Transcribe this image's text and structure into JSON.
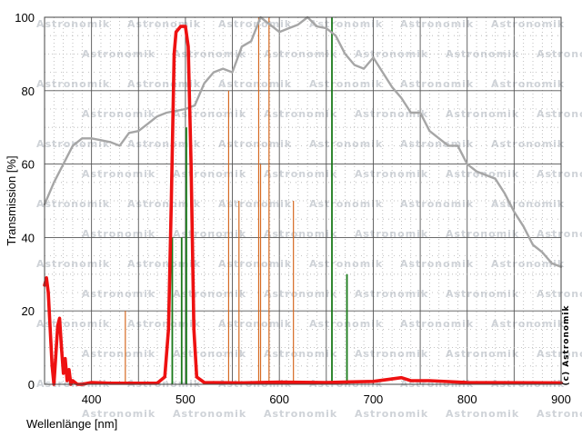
{
  "chart_data": {
    "type": "line",
    "xlabel": "Wellenlänge [nm]",
    "ylabel": "Transmission [%]",
    "xlim": [
      350,
      900
    ],
    "ylim": [
      0,
      100
    ],
    "x_ticks": [
      400,
      500,
      600,
      700,
      800,
      900
    ],
    "y_ticks": [
      0,
      20,
      40,
      60,
      80,
      100
    ],
    "grid": true,
    "legend": "none",
    "watermark": "Astronomik",
    "copyright": "(c) Astronomik",
    "colors": {
      "filter_curve": "#ee1111",
      "sensor_curve": "#a6a6a6",
      "orange_lines": "#d66a22",
      "green_lines": "#1a7a1a",
      "major_grid": "#555555",
      "minor_grid": "#b0b0b0"
    },
    "series": [
      {
        "style": "gray",
        "points": [
          [
            350,
            49
          ],
          [
            360,
            55
          ],
          [
            370,
            60
          ],
          [
            380,
            65
          ],
          [
            390,
            67
          ],
          [
            400,
            67
          ],
          [
            410,
            66.5
          ],
          [
            420,
            66
          ],
          [
            430,
            65
          ],
          [
            440,
            68.5
          ],
          [
            450,
            69
          ],
          [
            460,
            71
          ],
          [
            470,
            73
          ],
          [
            480,
            74
          ],
          [
            490,
            74.5
          ],
          [
            500,
            75
          ],
          [
            510,
            76
          ],
          [
            520,
            82
          ],
          [
            530,
            85
          ],
          [
            540,
            86
          ],
          [
            550,
            85
          ],
          [
            560,
            92
          ],
          [
            570,
            93.5
          ],
          [
            580,
            100
          ],
          [
            590,
            98
          ],
          [
            600,
            96
          ],
          [
            610,
            97
          ],
          [
            620,
            98
          ],
          [
            630,
            100
          ],
          [
            640,
            97.5
          ],
          [
            650,
            97
          ],
          [
            660,
            95
          ],
          [
            670,
            90
          ],
          [
            680,
            87
          ],
          [
            690,
            86
          ],
          [
            700,
            89
          ],
          [
            710,
            85
          ],
          [
            720,
            81
          ],
          [
            730,
            78
          ],
          [
            740,
            74
          ],
          [
            750,
            74
          ],
          [
            760,
            69
          ],
          [
            770,
            67
          ],
          [
            780,
            65
          ],
          [
            790,
            65
          ],
          [
            800,
            60
          ],
          [
            810,
            58
          ],
          [
            820,
            57
          ],
          [
            830,
            56
          ],
          [
            840,
            52
          ],
          [
            850,
            47
          ],
          [
            860,
            43
          ],
          [
            870,
            38
          ],
          [
            880,
            36
          ],
          [
            890,
            33
          ],
          [
            900,
            32
          ]
        ]
      },
      {
        "style": "red",
        "points": [
          [
            350,
            27
          ],
          [
            352,
            29
          ],
          [
            354,
            25
          ],
          [
            356,
            15
          ],
          [
            358,
            5
          ],
          [
            360,
            0
          ],
          [
            362,
            8
          ],
          [
            364,
            16
          ],
          [
            366,
            18
          ],
          [
            368,
            10
          ],
          [
            370,
            3
          ],
          [
            372,
            7
          ],
          [
            374,
            1
          ],
          [
            376,
            4
          ],
          [
            378,
            0
          ],
          [
            380,
            1
          ],
          [
            385,
            0
          ],
          [
            390,
            0
          ],
          [
            400,
            0.5
          ],
          [
            420,
            0.3
          ],
          [
            450,
            0.3
          ],
          [
            470,
            0.3
          ],
          [
            478,
            2
          ],
          [
            482,
            15
          ],
          [
            485,
            50
          ],
          [
            488,
            90
          ],
          [
            490,
            96
          ],
          [
            495,
            97.5
          ],
          [
            500,
            97.5
          ],
          [
            503,
            92
          ],
          [
            506,
            60
          ],
          [
            509,
            15
          ],
          [
            512,
            2
          ],
          [
            520,
            0.5
          ],
          [
            560,
            0.4
          ],
          [
            600,
            0.6
          ],
          [
            650,
            0.5
          ],
          [
            700,
            0.8
          ],
          [
            730,
            1.8
          ],
          [
            740,
            1
          ],
          [
            760,
            1
          ],
          [
            800,
            0.5
          ],
          [
            900,
            0.4
          ]
        ]
      }
    ],
    "emission_lines": [
      {
        "color": "orange",
        "x": 436,
        "value": 20
      },
      {
        "color": "orange",
        "x": 546,
        "value": 80
      },
      {
        "color": "orange",
        "x": 557,
        "value": 50
      },
      {
        "color": "orange",
        "x": 578,
        "value": 100
      },
      {
        "color": "orange",
        "x": 580,
        "value": 60
      },
      {
        "color": "orange",
        "x": 589,
        "value": 100
      },
      {
        "color": "orange",
        "x": 615,
        "value": 50
      },
      {
        "color": "green",
        "x": 486,
        "value": 40
      },
      {
        "color": "green",
        "x": 496,
        "value": 40
      },
      {
        "color": "green",
        "x": 501,
        "value": 70
      },
      {
        "color": "green",
        "x": 656,
        "value": 100
      },
      {
        "color": "green",
        "x": 672,
        "value": 30
      }
    ]
  }
}
